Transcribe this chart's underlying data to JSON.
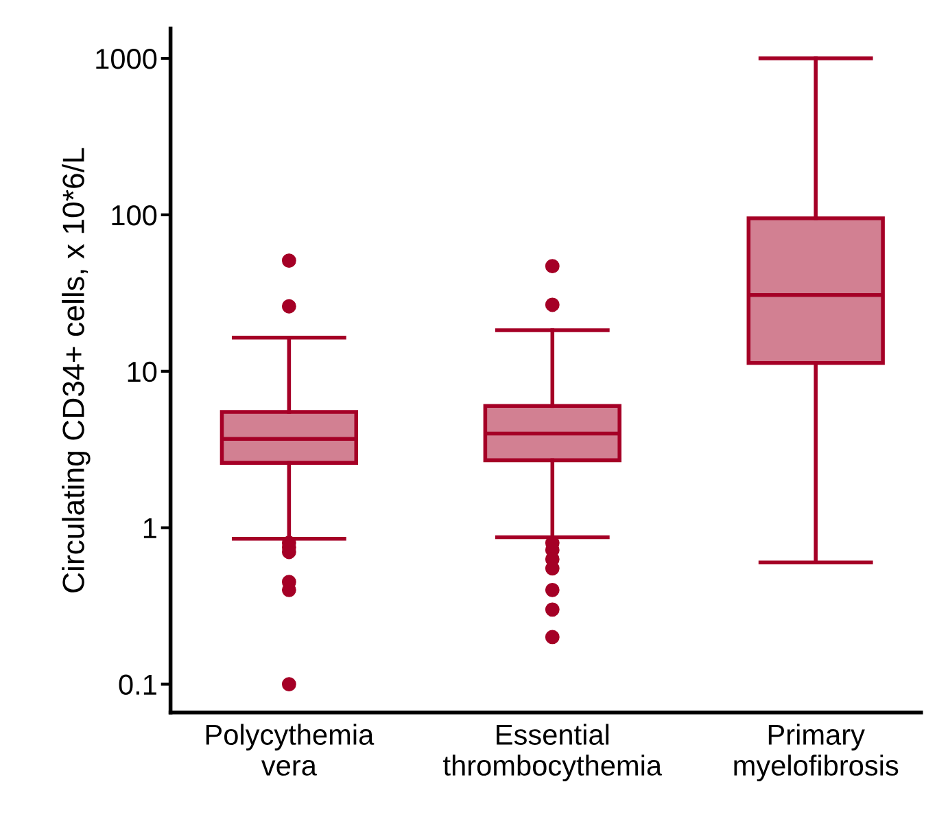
{
  "chart_data": {
    "type": "box",
    "ylabel": "Circulating CD34+ cells, x 10*6/L",
    "categories": [
      "Polycythemia\nvera",
      "Essential\nthrombocythemia",
      "Primary\nmyelofibrosis"
    ],
    "boxes": [
      {
        "low": 0.85,
        "q1": 2.6,
        "median": 3.7,
        "q3": 5.5,
        "high": 16.4,
        "outliers": [
          51,
          26,
          0.8,
          0.75,
          0.7,
          0.45,
          0.4,
          0.1
        ]
      },
      {
        "low": 0.87,
        "q1": 2.7,
        "median": 4.0,
        "q3": 6.0,
        "high": 18.3,
        "outliers": [
          47,
          26.6,
          0.8,
          0.72,
          0.63,
          0.55,
          0.4,
          0.3,
          0.2
        ]
      },
      {
        "low": 0.6,
        "q1": 11.3,
        "median": 30.7,
        "q3": 95,
        "high": 1000
      }
    ],
    "color": "#a50026",
    "log": true,
    "ylim": [
      0.066,
      1550
    ],
    "yticks": [
      0.1,
      1,
      10,
      100,
      1000
    ],
    "grid": false,
    "legend": false
  }
}
